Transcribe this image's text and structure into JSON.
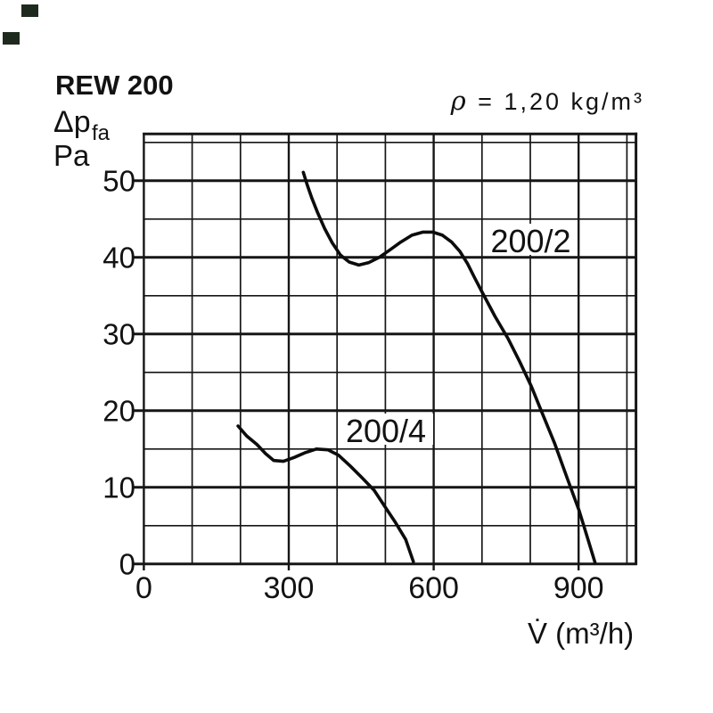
{
  "header": {
    "title": "REW 200"
  },
  "axis_labels": {
    "pressure_symbol": "Δp",
    "pressure_subscript": "fa",
    "pressure_unit": "Pa",
    "flow_label": "V̇ (m³/h)"
  },
  "density": {
    "symbol": "ρ",
    "text": " = 1,20 kg/m³"
  },
  "chart_data": {
    "type": "line",
    "title": "REW 200",
    "xlabel": "V̇ (m³/h)",
    "ylabel": "Δp_fa (Pa)",
    "xlim": [
      0,
      1015
    ],
    "ylim": [
      0,
      56
    ],
    "x_major_ticks": [
      0,
      300,
      600,
      900
    ],
    "x_minor_step": 100,
    "y_major_ticks": [
      0,
      10,
      20,
      30,
      40,
      50
    ],
    "y_minor_step": 5,
    "grid": true,
    "legend_position": "inline-labels",
    "density_annotation": "ρ = 1,20 kg/m³",
    "series": [
      {
        "name": "200/2",
        "points": [
          [
            330,
            51.1
          ],
          [
            338,
            49.5
          ],
          [
            348,
            47.7
          ],
          [
            360,
            45.8
          ],
          [
            374,
            43.8
          ],
          [
            390,
            41.9
          ],
          [
            407,
            40.3
          ],
          [
            425,
            39.4
          ],
          [
            445,
            39.0
          ],
          [
            465,
            39.3
          ],
          [
            487,
            40.0
          ],
          [
            510,
            41.0
          ],
          [
            532,
            42.0
          ],
          [
            555,
            42.9
          ],
          [
            578,
            43.3
          ],
          [
            598,
            43.3
          ],
          [
            618,
            42.9
          ],
          [
            637,
            42.0
          ],
          [
            654,
            40.8
          ],
          [
            670,
            39.2
          ],
          [
            685,
            37.3
          ],
          [
            700,
            35.5
          ],
          [
            727,
            32.3
          ],
          [
            754,
            29.4
          ],
          [
            778,
            26.4
          ],
          [
            802,
            23.2
          ],
          [
            822,
            20.1
          ],
          [
            850,
            15.8
          ],
          [
            877,
            11.1
          ],
          [
            901,
            7.0
          ],
          [
            920,
            3.1
          ],
          [
            934,
            0.2
          ]
        ]
      },
      {
        "name": "200/4",
        "points": [
          [
            195,
            18.0
          ],
          [
            213,
            16.7
          ],
          [
            234,
            15.6
          ],
          [
            252,
            14.4
          ],
          [
            269,
            13.5
          ],
          [
            289,
            13.4
          ],
          [
            311,
            13.9
          ],
          [
            333,
            14.5
          ],
          [
            357,
            15.0
          ],
          [
            381,
            14.9
          ],
          [
            403,
            14.2
          ],
          [
            427,
            12.8
          ],
          [
            451,
            11.3
          ],
          [
            477,
            9.6
          ],
          [
            501,
            7.3
          ],
          [
            521,
            5.4
          ],
          [
            542,
            3.2
          ],
          [
            558,
            0.3
          ]
        ]
      }
    ]
  }
}
